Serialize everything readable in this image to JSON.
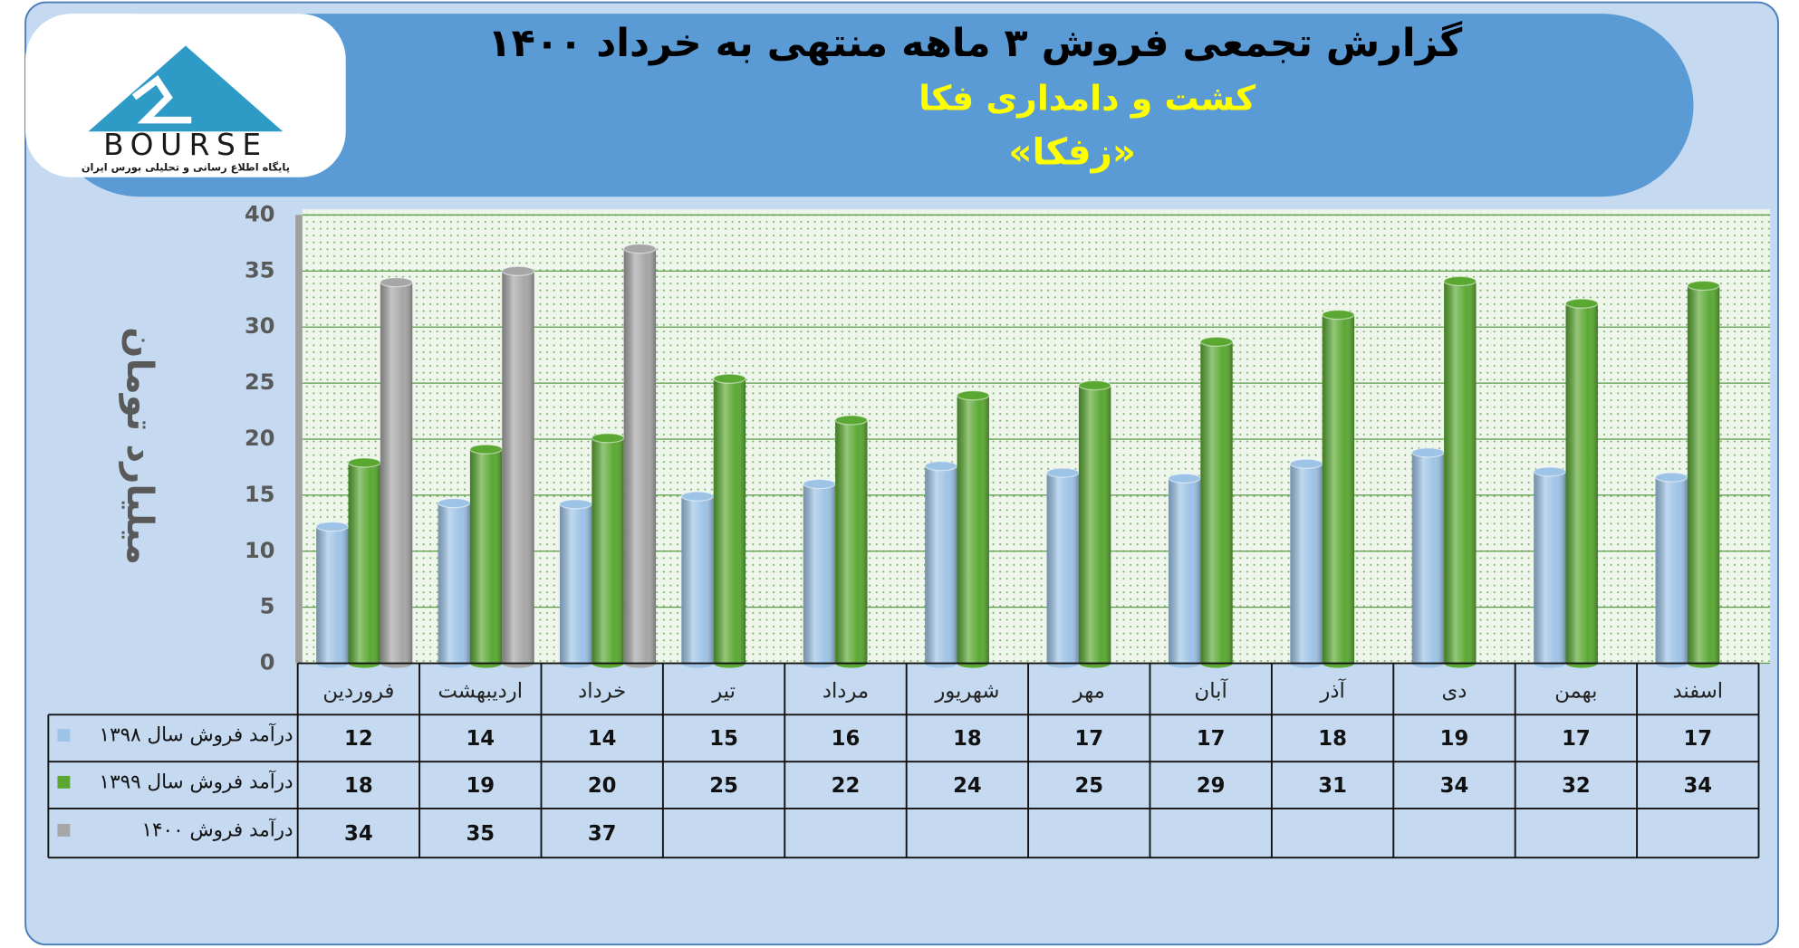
{
  "logo": {
    "name": "BOURSE",
    "tagline": "پایگاه اطلاع رسانی و تحلیلی بورس ایران"
  },
  "chart_data": {
    "type": "bar",
    "title": "گزارش تجمعی فروش ۳ ماهه منتهی به خرداد ۱۴۰۰",
    "subtitle": "کشت و دامداری فکا",
    "symbol": "«زفکا»",
    "y_label": "میلیارد تومان",
    "categories": [
      "فروردین",
      "اردیبهشت",
      "خرداد",
      "تیر",
      "مرداد",
      "شهریور",
      "مهر",
      "آبان",
      "آذر",
      "دی",
      "بهمن",
      "اسفند"
    ],
    "series": [
      {
        "name": "درآمد فروش سال ۱۳۹۸",
        "color": "#9dc3e6",
        "values": [
          12.2,
          14.3,
          14.2,
          14.9,
          16.0,
          17.6,
          17.0,
          16.5,
          17.8,
          18.8,
          17.1,
          16.6
        ],
        "value_labels": [
          "12",
          "14",
          "14",
          "15",
          "16",
          "18",
          "17",
          "17",
          "18",
          "19",
          "17",
          "17"
        ]
      },
      {
        "name": "درآمد فروش سال ۱۳۹۹",
        "color": "#5aa832",
        "values": [
          17.9,
          19.1,
          20.1,
          25.4,
          21.7,
          23.9,
          24.8,
          28.7,
          31.1,
          34.1,
          32.1,
          33.7
        ],
        "value_labels": [
          "18",
          "19",
          "20",
          "25",
          "22",
          "24",
          "25",
          "29",
          "31",
          "34",
          "32",
          "34"
        ]
      },
      {
        "name": "درآمد فروش ۱۴۰۰",
        "color": "#a6a6a6",
        "values": [
          34.0,
          35.0,
          37.0,
          null,
          null,
          null,
          null,
          null,
          null,
          null,
          null,
          null
        ],
        "value_labels": [
          "34",
          "35",
          "37",
          null,
          null,
          null,
          null,
          null,
          null,
          null,
          null,
          null
        ]
      }
    ],
    "ylim": [
      0,
      40
    ],
    "yticks": [
      0,
      5,
      10,
      15,
      20,
      25,
      30,
      35,
      40
    ],
    "grid": true
  }
}
